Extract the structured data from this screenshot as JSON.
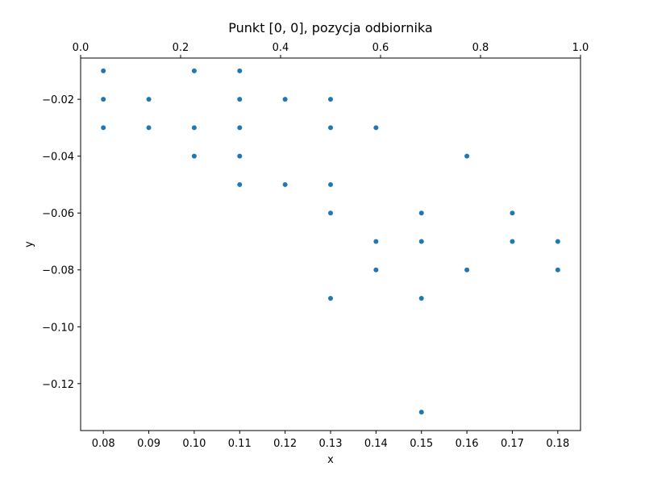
{
  "chart_data": {
    "type": "scatter",
    "title": "Punkt [0, 0], pozycja odbiornika",
    "xlabel": "x",
    "ylabel": "y",
    "xlim": [
      0.075,
      0.185
    ],
    "ylim": [
      -0.1365,
      -0.0055
    ],
    "x_ticks": [
      0.08,
      0.09,
      0.1,
      0.11,
      0.12,
      0.13,
      0.14,
      0.15,
      0.16,
      0.17,
      0.18
    ],
    "x_tick_labels": [
      "0.08",
      "0.09",
      "0.10",
      "0.11",
      "0.12",
      "0.13",
      "0.14",
      "0.15",
      "0.16",
      "0.17",
      "0.18"
    ],
    "y_ticks": [
      -0.02,
      -0.04,
      -0.06,
      -0.08,
      -0.1,
      -0.12
    ],
    "y_tick_labels": [
      "−0.02",
      "−0.04",
      "−0.06",
      "−0.08",
      "−0.10",
      "−0.12"
    ],
    "secondary_x_axis": {
      "position": "top",
      "xlim": [
        0,
        1
      ],
      "ticks": [
        0.0,
        0.2,
        0.4,
        0.6,
        0.8,
        1.0
      ],
      "tick_labels": [
        "0.0",
        "0.2",
        "0.4",
        "0.6",
        "0.8",
        "1.0"
      ]
    },
    "grid": false,
    "marker_color": "#1f77b4",
    "points": [
      {
        "x": 0.08,
        "y": -0.01
      },
      {
        "x": 0.1,
        "y": -0.01
      },
      {
        "x": 0.11,
        "y": -0.01
      },
      {
        "x": 0.08,
        "y": -0.02
      },
      {
        "x": 0.09,
        "y": -0.02
      },
      {
        "x": 0.11,
        "y": -0.02
      },
      {
        "x": 0.12,
        "y": -0.02
      },
      {
        "x": 0.13,
        "y": -0.02
      },
      {
        "x": 0.08,
        "y": -0.03
      },
      {
        "x": 0.09,
        "y": -0.03
      },
      {
        "x": 0.1,
        "y": -0.03
      },
      {
        "x": 0.11,
        "y": -0.03
      },
      {
        "x": 0.13,
        "y": -0.03
      },
      {
        "x": 0.14,
        "y": -0.03
      },
      {
        "x": 0.1,
        "y": -0.04
      },
      {
        "x": 0.11,
        "y": -0.04
      },
      {
        "x": 0.16,
        "y": -0.04
      },
      {
        "x": 0.11,
        "y": -0.05
      },
      {
        "x": 0.12,
        "y": -0.05
      },
      {
        "x": 0.13,
        "y": -0.05
      },
      {
        "x": 0.13,
        "y": -0.06
      },
      {
        "x": 0.15,
        "y": -0.06
      },
      {
        "x": 0.17,
        "y": -0.06
      },
      {
        "x": 0.14,
        "y": -0.07
      },
      {
        "x": 0.15,
        "y": -0.07
      },
      {
        "x": 0.17,
        "y": -0.07
      },
      {
        "x": 0.18,
        "y": -0.07
      },
      {
        "x": 0.14,
        "y": -0.08
      },
      {
        "x": 0.16,
        "y": -0.08
      },
      {
        "x": 0.18,
        "y": -0.08
      },
      {
        "x": 0.13,
        "y": -0.09
      },
      {
        "x": 0.15,
        "y": -0.09
      },
      {
        "x": 0.15,
        "y": -0.13
      }
    ]
  }
}
